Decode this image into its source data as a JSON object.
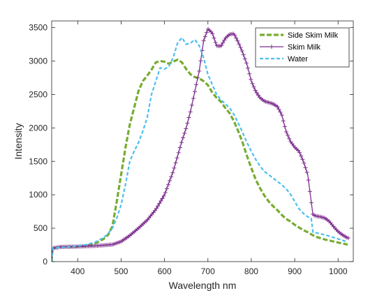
{
  "chart_data": {
    "type": "line",
    "title": "",
    "xlabel": "Wavelength nm",
    "ylabel": "Intensity",
    "xlim": [
      340,
      1035
    ],
    "ylim": [
      0,
      3600
    ],
    "x_ticks": [
      400,
      500,
      600,
      700,
      800,
      900,
      1000
    ],
    "y_ticks": [
      0,
      500,
      1000,
      1500,
      2000,
      2500,
      3000,
      3500
    ],
    "grid": false,
    "legend_position": "top-right",
    "series": [
      {
        "name": "Side Skim Milk",
        "color": "#77AC30",
        "line_style": "dashed-thick",
        "marker": "none",
        "points": [
          [
            340,
            0
          ],
          [
            342,
            200
          ],
          [
            360,
            215
          ],
          [
            380,
            220
          ],
          [
            400,
            225
          ],
          [
            420,
            235
          ],
          [
            440,
            270
          ],
          [
            460,
            340
          ],
          [
            470,
            400
          ],
          [
            480,
            530
          ],
          [
            490,
            900
          ],
          [
            500,
            1300
          ],
          [
            510,
            1700
          ],
          [
            520,
            2050
          ],
          [
            530,
            2300
          ],
          [
            540,
            2550
          ],
          [
            550,
            2700
          ],
          [
            560,
            2780
          ],
          [
            570,
            2870
          ],
          [
            580,
            2980
          ],
          [
            590,
            3000
          ],
          [
            600,
            2990
          ],
          [
            610,
            2960
          ],
          [
            620,
            2990
          ],
          [
            630,
            3020
          ],
          [
            640,
            2980
          ],
          [
            650,
            2880
          ],
          [
            660,
            2800
          ],
          [
            670,
            2760
          ],
          [
            680,
            2740
          ],
          [
            690,
            2700
          ],
          [
            700,
            2640
          ],
          [
            710,
            2530
          ],
          [
            720,
            2450
          ],
          [
            730,
            2390
          ],
          [
            740,
            2300
          ],
          [
            750,
            2220
          ],
          [
            760,
            2100
          ],
          [
            770,
            1950
          ],
          [
            780,
            1780
          ],
          [
            790,
            1580
          ],
          [
            800,
            1400
          ],
          [
            810,
            1230
          ],
          [
            820,
            1100
          ],
          [
            830,
            990
          ],
          [
            840,
            900
          ],
          [
            850,
            830
          ],
          [
            860,
            770
          ],
          [
            870,
            700
          ],
          [
            880,
            640
          ],
          [
            890,
            600
          ],
          [
            900,
            550
          ],
          [
            910,
            510
          ],
          [
            920,
            470
          ],
          [
            930,
            440
          ],
          [
            935,
            420
          ],
          [
            940,
            400
          ],
          [
            950,
            370
          ],
          [
            970,
            330
          ],
          [
            990,
            300
          ],
          [
            1010,
            270
          ],
          [
            1022,
            255
          ]
        ]
      },
      {
        "name": "Skim Milk",
        "color": "#7E2F8E",
        "line_style": "solid",
        "marker": "plus",
        "points": [
          [
            340,
            0
          ],
          [
            342,
            200
          ],
          [
            360,
            220
          ],
          [
            400,
            225
          ],
          [
            440,
            235
          ],
          [
            480,
            255
          ],
          [
            500,
            300
          ],
          [
            520,
            390
          ],
          [
            540,
            500
          ],
          [
            560,
            620
          ],
          [
            580,
            780
          ],
          [
            600,
            1000
          ],
          [
            620,
            1350
          ],
          [
            640,
            1800
          ],
          [
            650,
            2000
          ],
          [
            660,
            2250
          ],
          [
            670,
            2550
          ],
          [
            680,
            2850
          ],
          [
            690,
            3300
          ],
          [
            700,
            3480
          ],
          [
            710,
            3420
          ],
          [
            720,
            3230
          ],
          [
            730,
            3220
          ],
          [
            740,
            3340
          ],
          [
            750,
            3400
          ],
          [
            760,
            3410
          ],
          [
            770,
            3280
          ],
          [
            780,
            3130
          ],
          [
            790,
            2950
          ],
          [
            800,
            2700
          ],
          [
            810,
            2550
          ],
          [
            820,
            2450
          ],
          [
            830,
            2400
          ],
          [
            840,
            2380
          ],
          [
            850,
            2360
          ],
          [
            860,
            2320
          ],
          [
            870,
            2200
          ],
          [
            880,
            1950
          ],
          [
            890,
            1800
          ],
          [
            900,
            1710
          ],
          [
            910,
            1650
          ],
          [
            920,
            1500
          ],
          [
            930,
            1300
          ],
          [
            938,
            900
          ],
          [
            942,
            700
          ],
          [
            950,
            680
          ],
          [
            960,
            670
          ],
          [
            970,
            650
          ],
          [
            980,
            600
          ],
          [
            990,
            520
          ],
          [
            1000,
            450
          ],
          [
            1010,
            400
          ],
          [
            1020,
            360
          ],
          [
            1025,
            350
          ]
        ]
      },
      {
        "name": "Water",
        "color": "#4DBEEE",
        "line_style": "dashed",
        "marker": "none",
        "points": [
          [
            340,
            0
          ],
          [
            342,
            200
          ],
          [
            360,
            210
          ],
          [
            380,
            220
          ],
          [
            400,
            235
          ],
          [
            420,
            255
          ],
          [
            440,
            290
          ],
          [
            460,
            360
          ],
          [
            470,
            420
          ],
          [
            480,
            500
          ],
          [
            490,
            650
          ],
          [
            500,
            850
          ],
          [
            510,
            1150
          ],
          [
            520,
            1500
          ],
          [
            530,
            1650
          ],
          [
            540,
            1780
          ],
          [
            550,
            1950
          ],
          [
            560,
            2150
          ],
          [
            570,
            2500
          ],
          [
            580,
            2700
          ],
          [
            590,
            2900
          ],
          [
            600,
            2880
          ],
          [
            610,
            2920
          ],
          [
            620,
            3050
          ],
          [
            630,
            3270
          ],
          [
            640,
            3350
          ],
          [
            650,
            3250
          ],
          [
            660,
            3270
          ],
          [
            670,
            3320
          ],
          [
            680,
            3230
          ],
          [
            690,
            3050
          ],
          [
            700,
            2800
          ],
          [
            710,
            2650
          ],
          [
            720,
            2500
          ],
          [
            730,
            2420
          ],
          [
            740,
            2360
          ],
          [
            750,
            2300
          ],
          [
            760,
            2200
          ],
          [
            770,
            2070
          ],
          [
            780,
            1930
          ],
          [
            790,
            1780
          ],
          [
            800,
            1650
          ],
          [
            810,
            1530
          ],
          [
            820,
            1430
          ],
          [
            830,
            1350
          ],
          [
            840,
            1300
          ],
          [
            850,
            1250
          ],
          [
            860,
            1200
          ],
          [
            870,
            1150
          ],
          [
            880,
            1090
          ],
          [
            890,
            1010
          ],
          [
            900,
            900
          ],
          [
            910,
            790
          ],
          [
            920,
            720
          ],
          [
            930,
            670
          ],
          [
            938,
            650
          ],
          [
            942,
            440
          ],
          [
            950,
            430
          ],
          [
            970,
            400
          ],
          [
            990,
            360
          ],
          [
            1010,
            320
          ],
          [
            1022,
            290
          ]
        ]
      }
    ]
  }
}
